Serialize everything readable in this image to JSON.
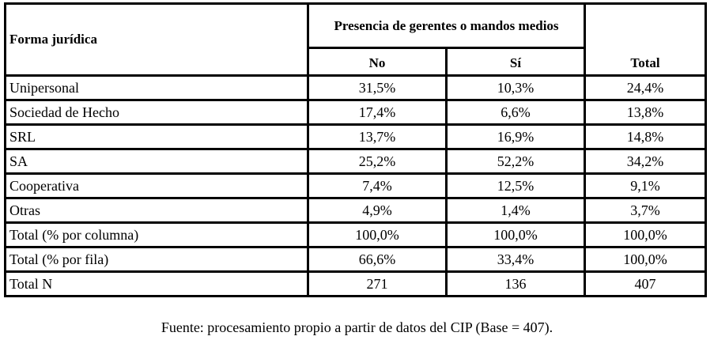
{
  "table": {
    "header": {
      "first_col": "Forma jurídica",
      "group": "Presencia de gerentes o mandos medios",
      "sub": [
        "No",
        "Sí"
      ],
      "total": "Total"
    },
    "rows": [
      {
        "label": "Unipersonal",
        "no": "31,5%",
        "si": "10,3%",
        "total": "24,4%"
      },
      {
        "label": "Sociedad de Hecho",
        "no": "17,4%",
        "si": "6,6%",
        "total": "13,8%"
      },
      {
        "label": "SRL",
        "no": "13,7%",
        "si": "16,9%",
        "total": "14,8%"
      },
      {
        "label": "SA",
        "no": "25,2%",
        "si": "52,2%",
        "total": "34,2%"
      },
      {
        "label": "Cooperativa",
        "no": "7,4%",
        "si": "12,5%",
        "total": "9,1%"
      },
      {
        "label": "Otras",
        "no": "4,9%",
        "si": "1,4%",
        "total": "3,7%"
      },
      {
        "label": "Total (% por columna)",
        "no": "100,0%",
        "si": "100,0%",
        "total": "100,0%"
      },
      {
        "label": "Total (% por fila)",
        "no": "66,6%",
        "si": "33,4%",
        "total": "100,0%"
      },
      {
        "label": "Total N",
        "no": "271",
        "si": "136",
        "total": "407"
      }
    ]
  },
  "caption": "Fuente: procesamiento propio a partir de datos del CIP (Base = 407)."
}
